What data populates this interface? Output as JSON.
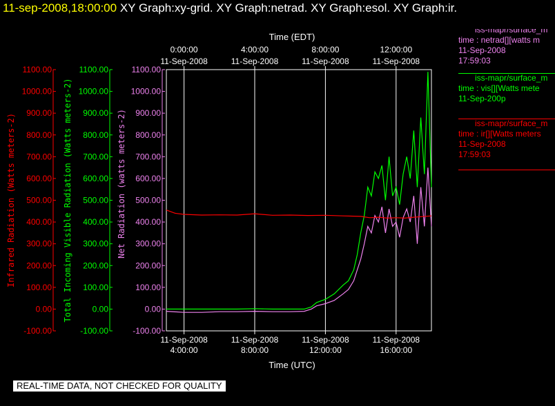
{
  "header": {
    "timestamp": "11-sep-2008,18:00:00",
    "graph_titles": [
      "XY Graph:xy-grid.",
      "XY Graph:netrad.",
      "XY Graph:esol.",
      "XY Graph:ir."
    ]
  },
  "legend": [
    {
      "line1": "iss-mapr/surface_m",
      "line2": "time : netrad[][watts m",
      "line3": "11-Sep-2008",
      "line4": "17:59:03",
      "color": "#ee82ee"
    },
    {
      "line1": "iss-mapr/surface_m",
      "line2": "time : vis[][Watts mete",
      "line3": "11-Sep-200p",
      "line4": "",
      "color": "#00ff00"
    },
    {
      "line1": "iss-mapr/surface_m",
      "line2": "time : ir[][Watts meters",
      "line3": "11-Sep-2008",
      "line4": "17:59:03",
      "color": "#ff0000"
    }
  ],
  "banner": {
    "text": "REAL-TIME DATA, NOT CHECKED FOR QUALITY"
  },
  "colors": {
    "ir": "#ff0000",
    "vis": "#00ff00",
    "net": "#ee82ee",
    "grid": "#ffffff",
    "text": "#ffffff",
    "timestamp": "#ffff00"
  },
  "chart_data": {
    "type": "line",
    "top_axis": {
      "title": "Time (EDT)",
      "ticks": [
        {
          "t": 0,
          "line1": "0:00:00",
          "line2": "11-Sep-2008"
        },
        {
          "t": 4,
          "line1": "4:00:00",
          "line2": "11-Sep-2008"
        },
        {
          "t": 8,
          "line1": "8:00:00",
          "line2": "11-Sep-2008"
        },
        {
          "t": 12,
          "line1": "12:00:00",
          "line2": "11-Sep-2008"
        }
      ]
    },
    "bottom_axis": {
      "title": "Time (UTC)",
      "ticks": [
        {
          "t": 4,
          "line1": "11-Sep-2008",
          "line2": "4:00:00"
        },
        {
          "t": 8,
          "line1": "11-Sep-2008",
          "line2": "8:00:00"
        },
        {
          "t": 12,
          "line1": "11-Sep-2008",
          "line2": "12:00:00"
        },
        {
          "t": 16,
          "line1": "11-Sep-2008",
          "line2": "16:00:00"
        }
      ],
      "range": [
        3.0,
        18.0
      ]
    },
    "y_axes": [
      {
        "id": "ir",
        "label": "Infrared Radiation (Watts meters-2)",
        "color": "#ff0000",
        "range": [
          -100,
          1100
        ],
        "ticks": [
          "-100.00",
          "0.00",
          "100.00",
          "200.00",
          "300.00",
          "400.00",
          "500.00",
          "600.00",
          "700.00",
          "800.00",
          "900.00",
          "1000.00",
          "1100.00"
        ]
      },
      {
        "id": "vis",
        "label": "Total Incoming Visible Radiation (Watts meters-2)",
        "color": "#00ff00",
        "range": [
          -100,
          1100
        ],
        "ticks": [
          "-100.00",
          "0.00",
          "100.00",
          "200.00",
          "300.00",
          "400.00",
          "500.00",
          "600.00",
          "700.00",
          "800.00",
          "900.00",
          "1000.00",
          "1100.00"
        ]
      },
      {
        "id": "net",
        "label": "Net Radiation (watts meters-2)",
        "color": "#ee82ee",
        "range": [
          -100,
          1100
        ],
        "ticks": [
          "-100.00",
          "0.00",
          "100.00",
          "200.00",
          "300.00",
          "400.00",
          "500.00",
          "600.00",
          "700.00",
          "800.00",
          "900.00",
          "1000.00",
          "1100.00"
        ]
      }
    ],
    "grid": true,
    "series": [
      {
        "id": "vis",
        "color": "#00ff00",
        "x_units": "hours UTC",
        "points": [
          [
            3.0,
            0
          ],
          [
            4,
            0
          ],
          [
            5,
            0
          ],
          [
            6,
            0
          ],
          [
            7,
            0
          ],
          [
            8,
            2
          ],
          [
            9,
            0
          ],
          [
            10,
            0
          ],
          [
            10.8,
            0
          ],
          [
            11.2,
            10
          ],
          [
            11.5,
            30
          ],
          [
            12,
            45
          ],
          [
            12.5,
            70
          ],
          [
            13,
            110
          ],
          [
            13.3,
            130
          ],
          [
            13.6,
            180
          ],
          [
            13.8,
            250
          ],
          [
            14.0,
            350
          ],
          [
            14.2,
            430
          ],
          [
            14.4,
            560
          ],
          [
            14.6,
            520
          ],
          [
            14.8,
            630
          ],
          [
            15.0,
            600
          ],
          [
            15.2,
            660
          ],
          [
            15.4,
            500
          ],
          [
            15.6,
            700
          ],
          [
            15.8,
            520
          ],
          [
            16.0,
            560
          ],
          [
            16.2,
            480
          ],
          [
            16.4,
            620
          ],
          [
            16.6,
            700
          ],
          [
            16.8,
            600
          ],
          [
            17.0,
            820
          ],
          [
            17.2,
            560
          ],
          [
            17.4,
            880
          ],
          [
            17.6,
            620
          ],
          [
            17.8,
            1090
          ],
          [
            18.0,
            560
          ]
        ]
      },
      {
        "id": "net",
        "color": "#ee82ee",
        "x_units": "hours UTC",
        "points": [
          [
            3.0,
            -10
          ],
          [
            4,
            -15
          ],
          [
            5,
            -15
          ],
          [
            6,
            -12
          ],
          [
            7,
            -12
          ],
          [
            8,
            -10
          ],
          [
            9,
            -12
          ],
          [
            10,
            -12
          ],
          [
            10.8,
            -10
          ],
          [
            11.2,
            0
          ],
          [
            11.5,
            15
          ],
          [
            12,
            25
          ],
          [
            12.5,
            40
          ],
          [
            13,
            70
          ],
          [
            13.3,
            90
          ],
          [
            13.6,
            130
          ],
          [
            13.8,
            180
          ],
          [
            14.0,
            230
          ],
          [
            14.2,
            300
          ],
          [
            14.4,
            380
          ],
          [
            14.6,
            350
          ],
          [
            14.8,
            430
          ],
          [
            15.0,
            400
          ],
          [
            15.2,
            470
          ],
          [
            15.4,
            350
          ],
          [
            15.6,
            460
          ],
          [
            15.8,
            380
          ],
          [
            16.0,
            400
          ],
          [
            16.2,
            330
          ],
          [
            16.4,
            420
          ],
          [
            16.6,
            460
          ],
          [
            16.8,
            400
          ],
          [
            17.0,
            520
          ],
          [
            17.2,
            300
          ],
          [
            17.4,
            560
          ],
          [
            17.6,
            380
          ],
          [
            17.8,
            650
          ],
          [
            18.0,
            380
          ]
        ]
      },
      {
        "id": "ir",
        "color": "#ff0000",
        "x_units": "hours UTC",
        "points": [
          [
            3.0,
            455
          ],
          [
            3.5,
            440
          ],
          [
            4,
            435
          ],
          [
            5,
            432
          ],
          [
            6,
            433
          ],
          [
            7,
            432
          ],
          [
            8,
            438
          ],
          [
            9,
            431
          ],
          [
            10,
            432
          ],
          [
            11,
            430
          ],
          [
            12,
            431
          ],
          [
            13,
            428
          ],
          [
            14,
            426
          ],
          [
            14.5,
            420
          ],
          [
            15,
            422
          ],
          [
            15.5,
            418
          ],
          [
            16,
            420
          ],
          [
            16.5,
            418
          ],
          [
            17,
            422
          ],
          [
            17.5,
            425
          ],
          [
            18,
            428
          ]
        ]
      }
    ]
  }
}
